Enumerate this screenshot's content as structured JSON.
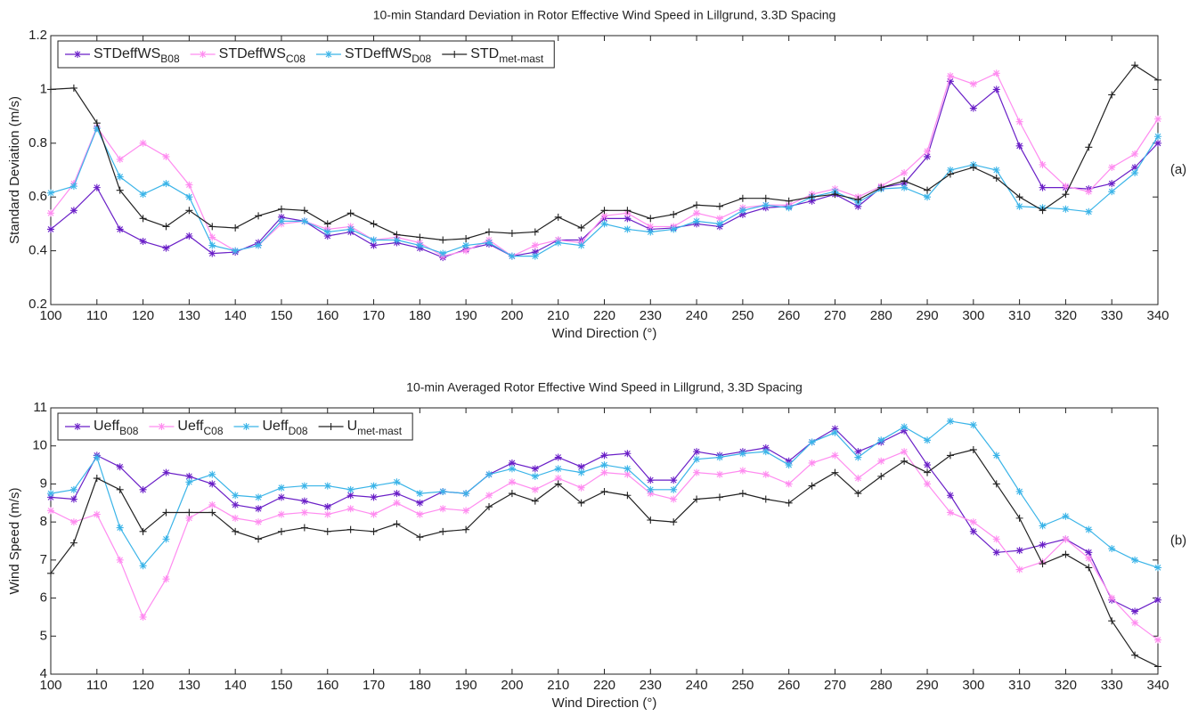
{
  "chart_data": [
    {
      "type": "line",
      "title": "10-min Standard Deviation in Rotor Effective Wind Speed in Lillgrund, 3.3D Spacing",
      "xlabel": "Wind Direction (°)",
      "ylabel": "Standard Deviation (m/s)",
      "panel_label": "(a)",
      "legend": "upper left",
      "grid": false,
      "x": [
        100,
        105,
        110,
        115,
        120,
        125,
        130,
        135,
        140,
        145,
        150,
        155,
        160,
        165,
        170,
        175,
        180,
        185,
        190,
        195,
        200,
        205,
        210,
        215,
        220,
        225,
        230,
        235,
        240,
        245,
        250,
        255,
        260,
        265,
        270,
        275,
        280,
        285,
        290,
        295,
        300,
        305,
        310,
        315,
        320,
        325,
        330,
        335,
        340
      ],
      "xlim": [
        100,
        340
      ],
      "xticks": [
        100,
        110,
        120,
        130,
        140,
        150,
        160,
        170,
        180,
        190,
        200,
        210,
        220,
        230,
        240,
        250,
        260,
        270,
        280,
        290,
        300,
        310,
        320,
        330,
        340
      ],
      "ylim": [
        0.2,
        1.2
      ],
      "yticks": [
        0.2,
        0.4,
        0.6,
        0.8,
        1,
        1.2
      ],
      "series": [
        {
          "name": "STDeffWS",
          "subscript": "B08",
          "color": "#6a1fc7",
          "marker": "star",
          "values": [
            0.48,
            0.55,
            0.635,
            0.48,
            0.435,
            0.41,
            0.455,
            0.39,
            0.395,
            0.43,
            0.525,
            0.51,
            0.455,
            0.47,
            0.42,
            0.43,
            0.41,
            0.375,
            0.405,
            0.425,
            0.38,
            0.395,
            0.44,
            0.44,
            0.52,
            0.52,
            0.48,
            0.485,
            0.5,
            0.49,
            0.535,
            0.56,
            0.565,
            0.585,
            0.61,
            0.565,
            0.635,
            0.65,
            0.75,
            1.03,
            0.93,
            1.0,
            0.79,
            0.635,
            0.635,
            0.63,
            0.65,
            0.71,
            0.8
          ]
        },
        {
          "name": "STDeffWS",
          "subscript": "C08",
          "color": "#ff8cf0",
          "marker": "star",
          "values": [
            0.54,
            0.65,
            0.86,
            0.74,
            0.8,
            0.75,
            0.645,
            0.45,
            0.4,
            0.42,
            0.5,
            0.51,
            0.48,
            0.49,
            0.44,
            0.45,
            0.43,
            0.38,
            0.4,
            0.44,
            0.38,
            0.42,
            0.44,
            0.43,
            0.53,
            0.54,
            0.49,
            0.49,
            0.54,
            0.52,
            0.56,
            0.57,
            0.57,
            0.61,
            0.63,
            0.6,
            0.64,
            0.69,
            0.77,
            1.05,
            1.02,
            1.06,
            0.88,
            0.72,
            0.64,
            0.62,
            0.71,
            0.76,
            0.89
          ]
        },
        {
          "name": "STDeffWS",
          "subscript": "D08",
          "color": "#3ab4e8",
          "marker": "star",
          "values": [
            0.615,
            0.64,
            0.855,
            0.675,
            0.61,
            0.65,
            0.6,
            0.42,
            0.4,
            0.42,
            0.51,
            0.51,
            0.47,
            0.48,
            0.44,
            0.44,
            0.42,
            0.39,
            0.42,
            0.43,
            0.38,
            0.38,
            0.43,
            0.42,
            0.5,
            0.48,
            0.47,
            0.48,
            0.51,
            0.5,
            0.55,
            0.57,
            0.56,
            0.6,
            0.62,
            0.58,
            0.63,
            0.635,
            0.6,
            0.7,
            0.72,
            0.7,
            0.565,
            0.56,
            0.555,
            0.545,
            0.62,
            0.69,
            0.825
          ]
        },
        {
          "name": "STD",
          "subscript": "met-mast",
          "color": "#222222",
          "marker": "plus",
          "values": [
            1.0,
            1.005,
            0.875,
            0.625,
            0.52,
            0.49,
            0.55,
            0.49,
            0.485,
            0.53,
            0.555,
            0.55,
            0.5,
            0.54,
            0.5,
            0.46,
            0.45,
            0.44,
            0.445,
            0.47,
            0.465,
            0.47,
            0.525,
            0.485,
            0.55,
            0.55,
            0.52,
            0.535,
            0.57,
            0.565,
            0.595,
            0.595,
            0.585,
            0.6,
            0.61,
            0.59,
            0.635,
            0.66,
            0.625,
            0.685,
            0.71,
            0.67,
            0.6,
            0.55,
            0.61,
            0.785,
            0.98,
            1.09,
            1.035
          ]
        }
      ]
    },
    {
      "type": "line",
      "title": "10-min Averaged Rotor Effective Wind Speed in Lillgrund, 3.3D Spacing",
      "xlabel": "Wind Direction (°)",
      "ylabel": "Wind Speed (m/s)",
      "panel_label": "(b)",
      "legend": "upper left",
      "grid": false,
      "x": [
        100,
        105,
        110,
        115,
        120,
        125,
        130,
        135,
        140,
        145,
        150,
        155,
        160,
        165,
        170,
        175,
        180,
        185,
        190,
        195,
        200,
        205,
        210,
        215,
        220,
        225,
        230,
        235,
        240,
        245,
        250,
        255,
        260,
        265,
        270,
        275,
        280,
        285,
        290,
        295,
        300,
        305,
        310,
        315,
        320,
        325,
        330,
        335,
        340
      ],
      "xlim": [
        100,
        340
      ],
      "xticks": [
        100,
        110,
        120,
        130,
        140,
        150,
        160,
        170,
        180,
        190,
        200,
        210,
        220,
        230,
        240,
        250,
        260,
        270,
        280,
        290,
        300,
        310,
        320,
        330,
        340
      ],
      "ylim": [
        4,
        11
      ],
      "yticks": [
        4,
        5,
        6,
        7,
        8,
        9,
        10,
        11
      ],
      "series": [
        {
          "name": "Ueff",
          "subscript": "B08",
          "color": "#6a1fc7",
          "marker": "star",
          "values": [
            8.65,
            8.6,
            9.75,
            9.45,
            8.85,
            9.3,
            9.2,
            9.0,
            8.45,
            8.35,
            8.65,
            8.55,
            8.4,
            8.7,
            8.65,
            8.75,
            8.5,
            8.8,
            8.75,
            9.25,
            9.55,
            9.4,
            9.7,
            9.45,
            9.75,
            9.8,
            9.1,
            9.1,
            9.85,
            9.75,
            9.85,
            9.95,
            9.6,
            10.1,
            10.45,
            9.85,
            10.1,
            10.4,
            9.5,
            8.7,
            7.75,
            7.2,
            7.25,
            7.4,
            7.55,
            7.2,
            5.95,
            5.65,
            5.95
          ]
        },
        {
          "name": "Ueff",
          "subscript": "C08",
          "color": "#ff8cf0",
          "marker": "star",
          "values": [
            8.3,
            8.0,
            8.2,
            7.0,
            5.5,
            6.5,
            8.1,
            8.45,
            8.1,
            8.0,
            8.2,
            8.25,
            8.2,
            8.35,
            8.2,
            8.5,
            8.2,
            8.35,
            8.3,
            8.7,
            9.05,
            8.85,
            9.15,
            8.9,
            9.3,
            9.25,
            8.75,
            8.6,
            9.3,
            9.25,
            9.35,
            9.25,
            9.0,
            9.55,
            9.75,
            9.15,
            9.6,
            9.85,
            9.0,
            8.25,
            8.0,
            7.55,
            6.75,
            6.95,
            7.55,
            7.05,
            6.0,
            5.35,
            4.9
          ]
        },
        {
          "name": "Ueff",
          "subscript": "D08",
          "color": "#3ab4e8",
          "marker": "star",
          "values": [
            8.75,
            8.85,
            9.7,
            7.85,
            6.85,
            7.55,
            9.05,
            9.25,
            8.7,
            8.65,
            8.9,
            8.95,
            8.95,
            8.85,
            8.95,
            9.05,
            8.75,
            8.8,
            8.75,
            9.25,
            9.4,
            9.2,
            9.4,
            9.3,
            9.5,
            9.4,
            8.85,
            8.85,
            9.65,
            9.7,
            9.8,
            9.85,
            9.5,
            10.1,
            10.35,
            9.7,
            10.15,
            10.5,
            10.15,
            10.65,
            10.55,
            9.75,
            8.8,
            7.9,
            8.15,
            7.8,
            7.3,
            7.0,
            6.8
          ]
        },
        {
          "name": "U",
          "subscript": "met-mast",
          "color": "#222222",
          "marker": "plus",
          "values": [
            6.65,
            7.45,
            9.15,
            8.85,
            7.75,
            8.25,
            8.25,
            8.25,
            7.75,
            7.55,
            7.75,
            7.85,
            7.75,
            7.8,
            7.75,
            7.95,
            7.6,
            7.75,
            7.8,
            8.4,
            8.75,
            8.55,
            9.0,
            8.5,
            8.8,
            8.7,
            8.05,
            8.0,
            8.6,
            8.65,
            8.75,
            8.6,
            8.5,
            8.95,
            9.3,
            8.75,
            9.2,
            9.6,
            9.3,
            9.75,
            9.9,
            9.0,
            8.1,
            6.9,
            7.15,
            6.8,
            5.4,
            4.5,
            4.2
          ]
        }
      ]
    }
  ]
}
